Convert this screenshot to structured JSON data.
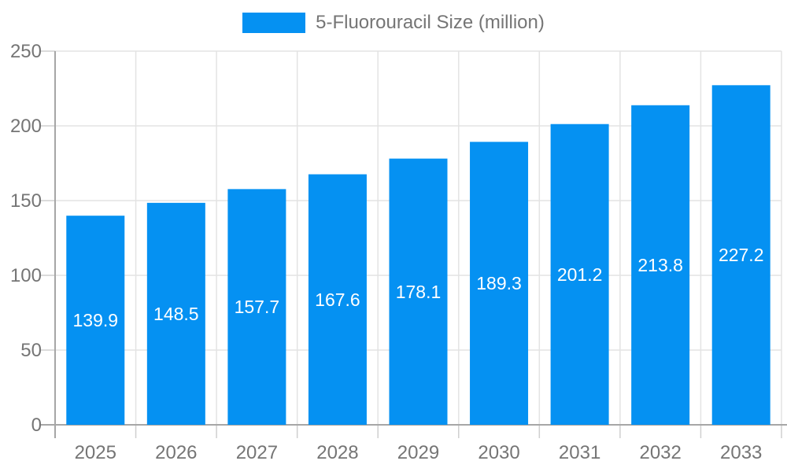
{
  "chart_data": {
    "type": "bar",
    "title": "5-Fluorouracil Size (million)",
    "legend_position": "top",
    "legend": [
      {
        "label": "5-Fluorouracil Size (million)",
        "color": "#0591f2"
      }
    ],
    "categories": [
      "2025",
      "2026",
      "2027",
      "2028",
      "2029",
      "2030",
      "2031",
      "2032",
      "2033"
    ],
    "series": [
      {
        "name": "5-Fluorouracil Size (million)",
        "values": [
          139.9,
          148.5,
          157.7,
          167.6,
          178.1,
          189.3,
          201.2,
          213.8,
          227.2
        ]
      }
    ],
    "value_labels": [
      "139.9",
      "148.5",
      "157.7",
      "167.6",
      "178.1",
      "189.3",
      "201.2",
      "213.8",
      "227.2"
    ],
    "xlabel": "",
    "ylabel": "",
    "ylim": [
      0,
      250
    ],
    "yticks": [
      0,
      50,
      100,
      150,
      200,
      250
    ],
    "ytick_labels": [
      "0",
      "50",
      "100",
      "150",
      "200",
      "250"
    ],
    "grid": true,
    "colors": {
      "bar": "#0591f2",
      "axis_line": "#a6a6a6",
      "grid_line": "#e3e3e3",
      "tick_line": "#cfcfcf",
      "axis_text": "#757575",
      "value_text": "#ffffff",
      "background": "#ffffff"
    }
  }
}
